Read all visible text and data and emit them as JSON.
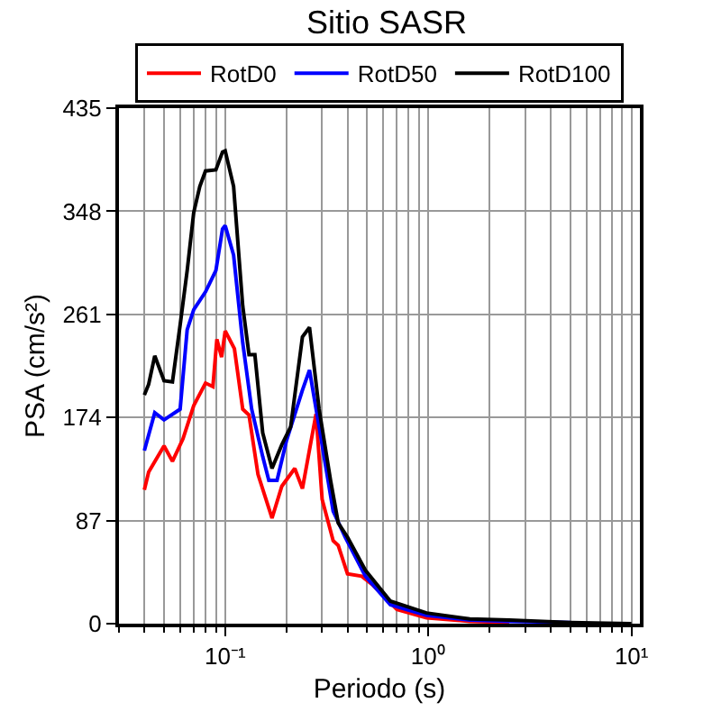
{
  "chart_data": {
    "type": "line",
    "title": "Sitio SASR",
    "xlabel": "Periodo (s)",
    "ylabel": "PSA (cm/s²)",
    "log": "x",
    "xlim": [
      0.03,
      11
    ],
    "xticks": [
      {
        "value": 0.1,
        "label": "10⁻¹"
      },
      {
        "value": 1,
        "label": "10⁰"
      },
      {
        "value": 10,
        "label": "10¹"
      }
    ],
    "ylim": [
      0,
      435
    ],
    "yticks": [
      0,
      87,
      174,
      261,
      348,
      435
    ],
    "grid": true,
    "legend": "top",
    "marker": "none",
    "line_style": "solid",
    "series": [
      {
        "name": "RotD0",
        "color": "#ff0000",
        "x": [
          0.04,
          0.042,
          0.05,
          0.055,
          0.062,
          0.07,
          0.08,
          0.087,
          0.091,
          0.096,
          0.1,
          0.111,
          0.122,
          0.131,
          0.145,
          0.17,
          0.19,
          0.22,
          0.24,
          0.28,
          0.3,
          0.34,
          0.36,
          0.4,
          0.47,
          0.53,
          0.7,
          0.98,
          1.6,
          2.5
        ],
        "values": [
          113,
          128,
          150,
          137,
          156,
          184,
          203,
          200,
          240,
          225,
          247,
          232,
          181,
          176,
          126,
          89,
          116,
          131,
          114,
          177,
          105,
          70,
          66,
          42,
          40,
          33,
          12,
          5,
          2,
          1
        ]
      },
      {
        "name": "RotD50",
        "color": "#0000ff",
        "x": [
          0.04,
          0.045,
          0.05,
          0.06,
          0.065,
          0.07,
          0.08,
          0.09,
          0.097,
          0.1,
          0.11,
          0.122,
          0.135,
          0.153,
          0.164,
          0.18,
          0.2,
          0.24,
          0.26,
          0.29,
          0.34,
          0.39,
          0.49,
          0.65,
          0.98,
          1.6,
          2.5,
          5
        ],
        "values": [
          146,
          178,
          172,
          181,
          248,
          265,
          280,
          298,
          333,
          336,
          311,
          237,
          181,
          141,
          121,
          121,
          154,
          197,
          214,
          166,
          95,
          73,
          40,
          16,
          7,
          3,
          2,
          1
        ]
      },
      {
        "name": "RotD100",
        "color": "#000000",
        "x": [
          0.04,
          0.042,
          0.045,
          0.05,
          0.055,
          0.06,
          0.065,
          0.07,
          0.075,
          0.08,
          0.09,
          0.097,
          0.1,
          0.11,
          0.122,
          0.131,
          0.14,
          0.153,
          0.17,
          0.19,
          0.21,
          0.24,
          0.26,
          0.29,
          0.33,
          0.36,
          0.4,
          0.49,
          0.65,
          0.98,
          1.6,
          2.5,
          5,
          10
        ],
        "values": [
          193,
          202,
          226,
          205,
          204,
          252,
          298,
          347,
          369,
          382,
          383,
          398,
          399,
          369,
          268,
          227,
          227,
          161,
          131,
          151,
          166,
          242,
          250,
          181,
          121,
          85,
          73,
          45,
          19,
          9,
          4,
          3,
          1,
          0
        ]
      }
    ]
  }
}
